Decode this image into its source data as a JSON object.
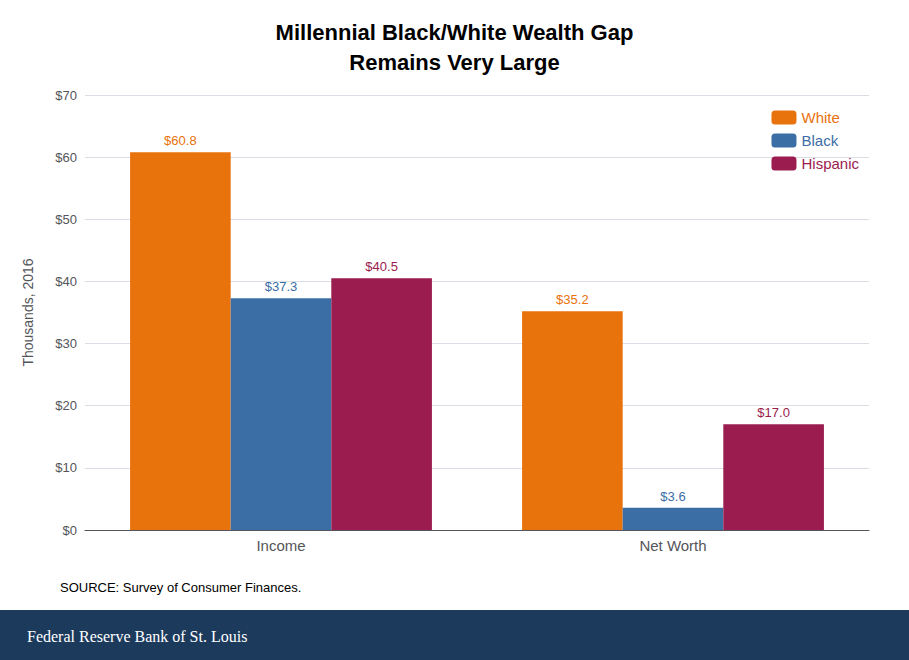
{
  "chart_data": {
    "type": "bar",
    "title": "Millennial Black/White Wealth Gap\nRemains Very Large",
    "categories": [
      "Income",
      "Net Worth"
    ],
    "series": [
      {
        "name": "White",
        "color": "#E8720C",
        "values": [
          60.8,
          35.2
        ],
        "value_labels": [
          "$60.8",
          "$35.2"
        ]
      },
      {
        "name": "Black",
        "color": "#3B6EA5",
        "values": [
          37.3,
          3.6
        ],
        "value_labels": [
          "$37.3",
          "$3.6"
        ]
      },
      {
        "name": "Hispanic",
        "color": "#9B1C4E",
        "values": [
          40.5,
          17.0
        ],
        "value_labels": [
          "$40.5",
          "$17.0"
        ]
      }
    ],
    "ylabel": "Thousands, 2016",
    "ylim": [
      0,
      70
    ],
    "yticks": [
      {
        "value": 0,
        "label": "$0"
      },
      {
        "value": 10,
        "label": "$10"
      },
      {
        "value": 20,
        "label": "$20"
      },
      {
        "value": 30,
        "label": "$30"
      },
      {
        "value": 40,
        "label": "$40"
      },
      {
        "value": 50,
        "label": "$50"
      },
      {
        "value": 60,
        "label": "$60"
      },
      {
        "value": 70,
        "label": "$70"
      }
    ],
    "grid": true,
    "legend": "upper right",
    "data_labels": true,
    "annotations": [
      "SOURCE: Survey of Consumer Finances.",
      "Federal Reserve Bank ​of​ St. Louis"
    ]
  }
}
